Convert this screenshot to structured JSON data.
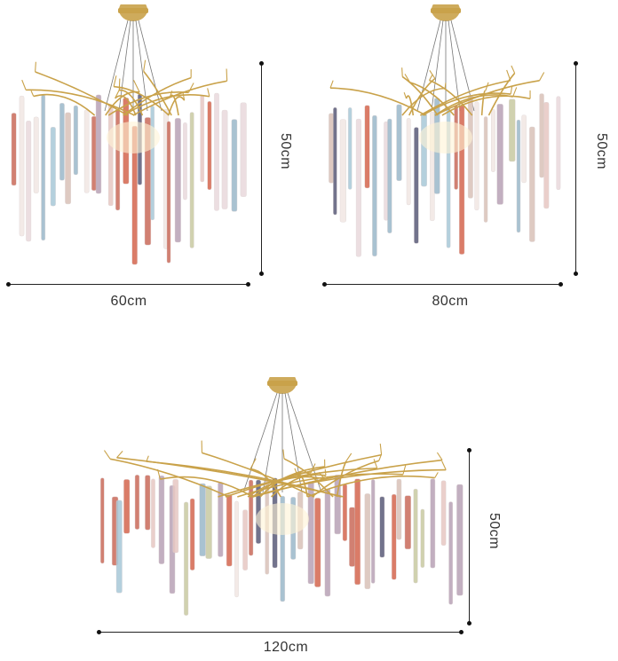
{
  "products": [
    {
      "id": "small",
      "width_label": "60cm",
      "height_label": "50cm"
    },
    {
      "id": "medium",
      "width_label": "80cm",
      "height_label": "50cm"
    },
    {
      "id": "large",
      "width_label": "120cm",
      "height_label": "50cm"
    }
  ],
  "colors": {
    "brass": "#c9a24a",
    "crystal_tints": [
      "#e9d9dc",
      "#d9c1b8",
      "#c96a5a",
      "#5a5b78",
      "#a8c8d8",
      "#e7c7c2",
      "#f1e7e3",
      "#b8a2b6",
      "#d4664e",
      "#c8c9a2",
      "#9bb8c9"
    ]
  }
}
